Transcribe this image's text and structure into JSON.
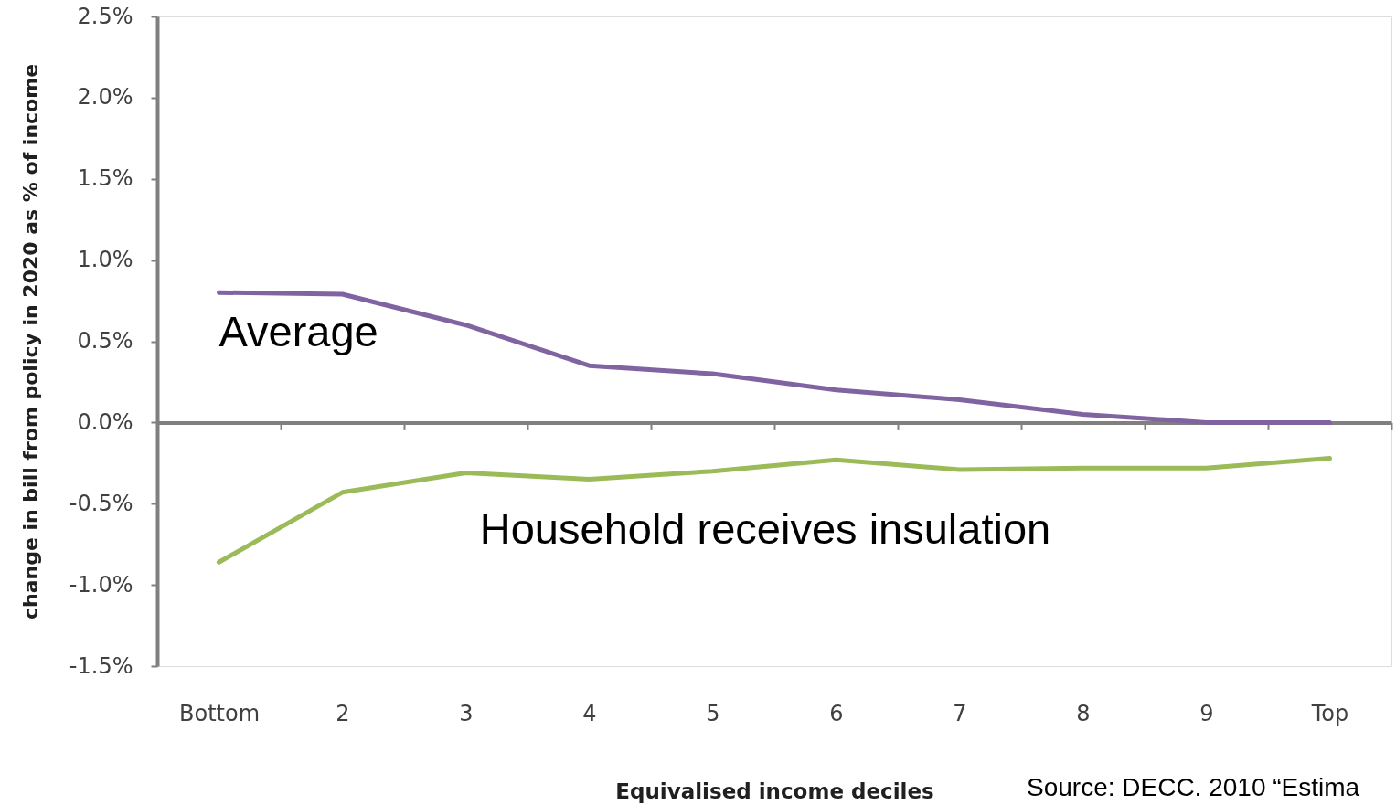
{
  "chart_data": {
    "type": "line",
    "categories": [
      "Bottom",
      "2",
      "3",
      "4",
      "5",
      "6",
      "7",
      "8",
      "9",
      "Top"
    ],
    "series": [
      {
        "name": "Average",
        "color": "#8064a2",
        "values": [
          0.8,
          0.79,
          0.6,
          0.35,
          0.3,
          0.2,
          0.14,
          0.05,
          0.0,
          0.0
        ]
      },
      {
        "name": "Household receives insulation",
        "color": "#9bbb59",
        "values": [
          -0.86,
          -0.43,
          -0.31,
          -0.35,
          -0.3,
          -0.23,
          -0.29,
          -0.28,
          -0.28,
          -0.22
        ]
      }
    ],
    "xlabel": "Equivalised income deciles",
    "ylabel": "change in bill from policy in 2020 as % of income",
    "ylim": [
      -1.5,
      2.5
    ],
    "yticks": [
      {
        "value": -1.5,
        "label": "-1.5%"
      },
      {
        "value": -1.0,
        "label": "-1.0%"
      },
      {
        "value": -0.5,
        "label": "-0.5%"
      },
      {
        "value": 0.0,
        "label": "0.0%"
      },
      {
        "value": 0.5,
        "label": "0.5%"
      },
      {
        "value": 1.0,
        "label": "1.0%"
      },
      {
        "value": 1.5,
        "label": "1.5%"
      },
      {
        "value": 2.0,
        "label": "2.0%"
      },
      {
        "value": 2.5,
        "label": "2.5%"
      }
    ],
    "annotations": [
      "Source: DECC. 2010 “Estima"
    ]
  }
}
